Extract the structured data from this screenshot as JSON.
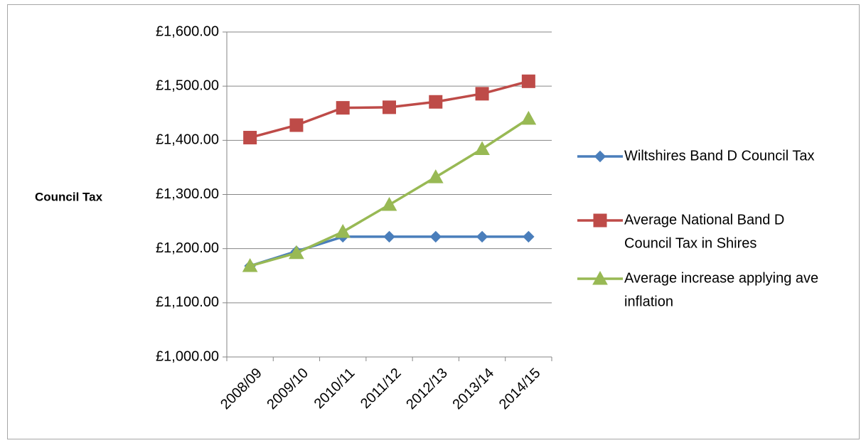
{
  "chart_data": {
    "type": "line",
    "title": "",
    "xlabel": "",
    "ylabel": "Council Tax",
    "categories": [
      "2008/09",
      "2009/10",
      "2010/11",
      "2011/12",
      "2012/13",
      "2013/14",
      "2014/15"
    ],
    "ylim": [
      1000,
      1600
    ],
    "yticks": [
      1000,
      1100,
      1200,
      1300,
      1400,
      1500,
      1600
    ],
    "ytick_labels": [
      "£1,000.00",
      "£1,100.00",
      "£1,200.00",
      "£1,300.00",
      "£1,400.00",
      "£1,500.00",
      "£1,600.00"
    ],
    "grid": true,
    "legend_position": "right",
    "series": [
      {
        "name": "Wiltshires Band D Council Tax",
        "legend_lines": [
          "Wiltshires Band D Council Tax"
        ],
        "color": "#4a7ebb",
        "marker": "diamond",
        "values": [
          1168,
          1195,
          1222,
          1222,
          1222,
          1222,
          1222
        ]
      },
      {
        "name": "Average National Band D Council Tax in Shires",
        "legend_lines": [
          "Average National Band D",
          "Council Tax in Shires"
        ],
        "color": "#be4b48",
        "marker": "square",
        "values": [
          1405,
          1428,
          1460,
          1461,
          1471,
          1486,
          1509
        ]
      },
      {
        "name": "Average increase applying ave inflation",
        "legend_lines": [
          "Average increase applying ave",
          "inflation"
        ],
        "color": "#98b954",
        "marker": "triangle",
        "values": [
          1168,
          1192,
          1231,
          1281,
          1332,
          1384,
          1440
        ]
      }
    ]
  }
}
